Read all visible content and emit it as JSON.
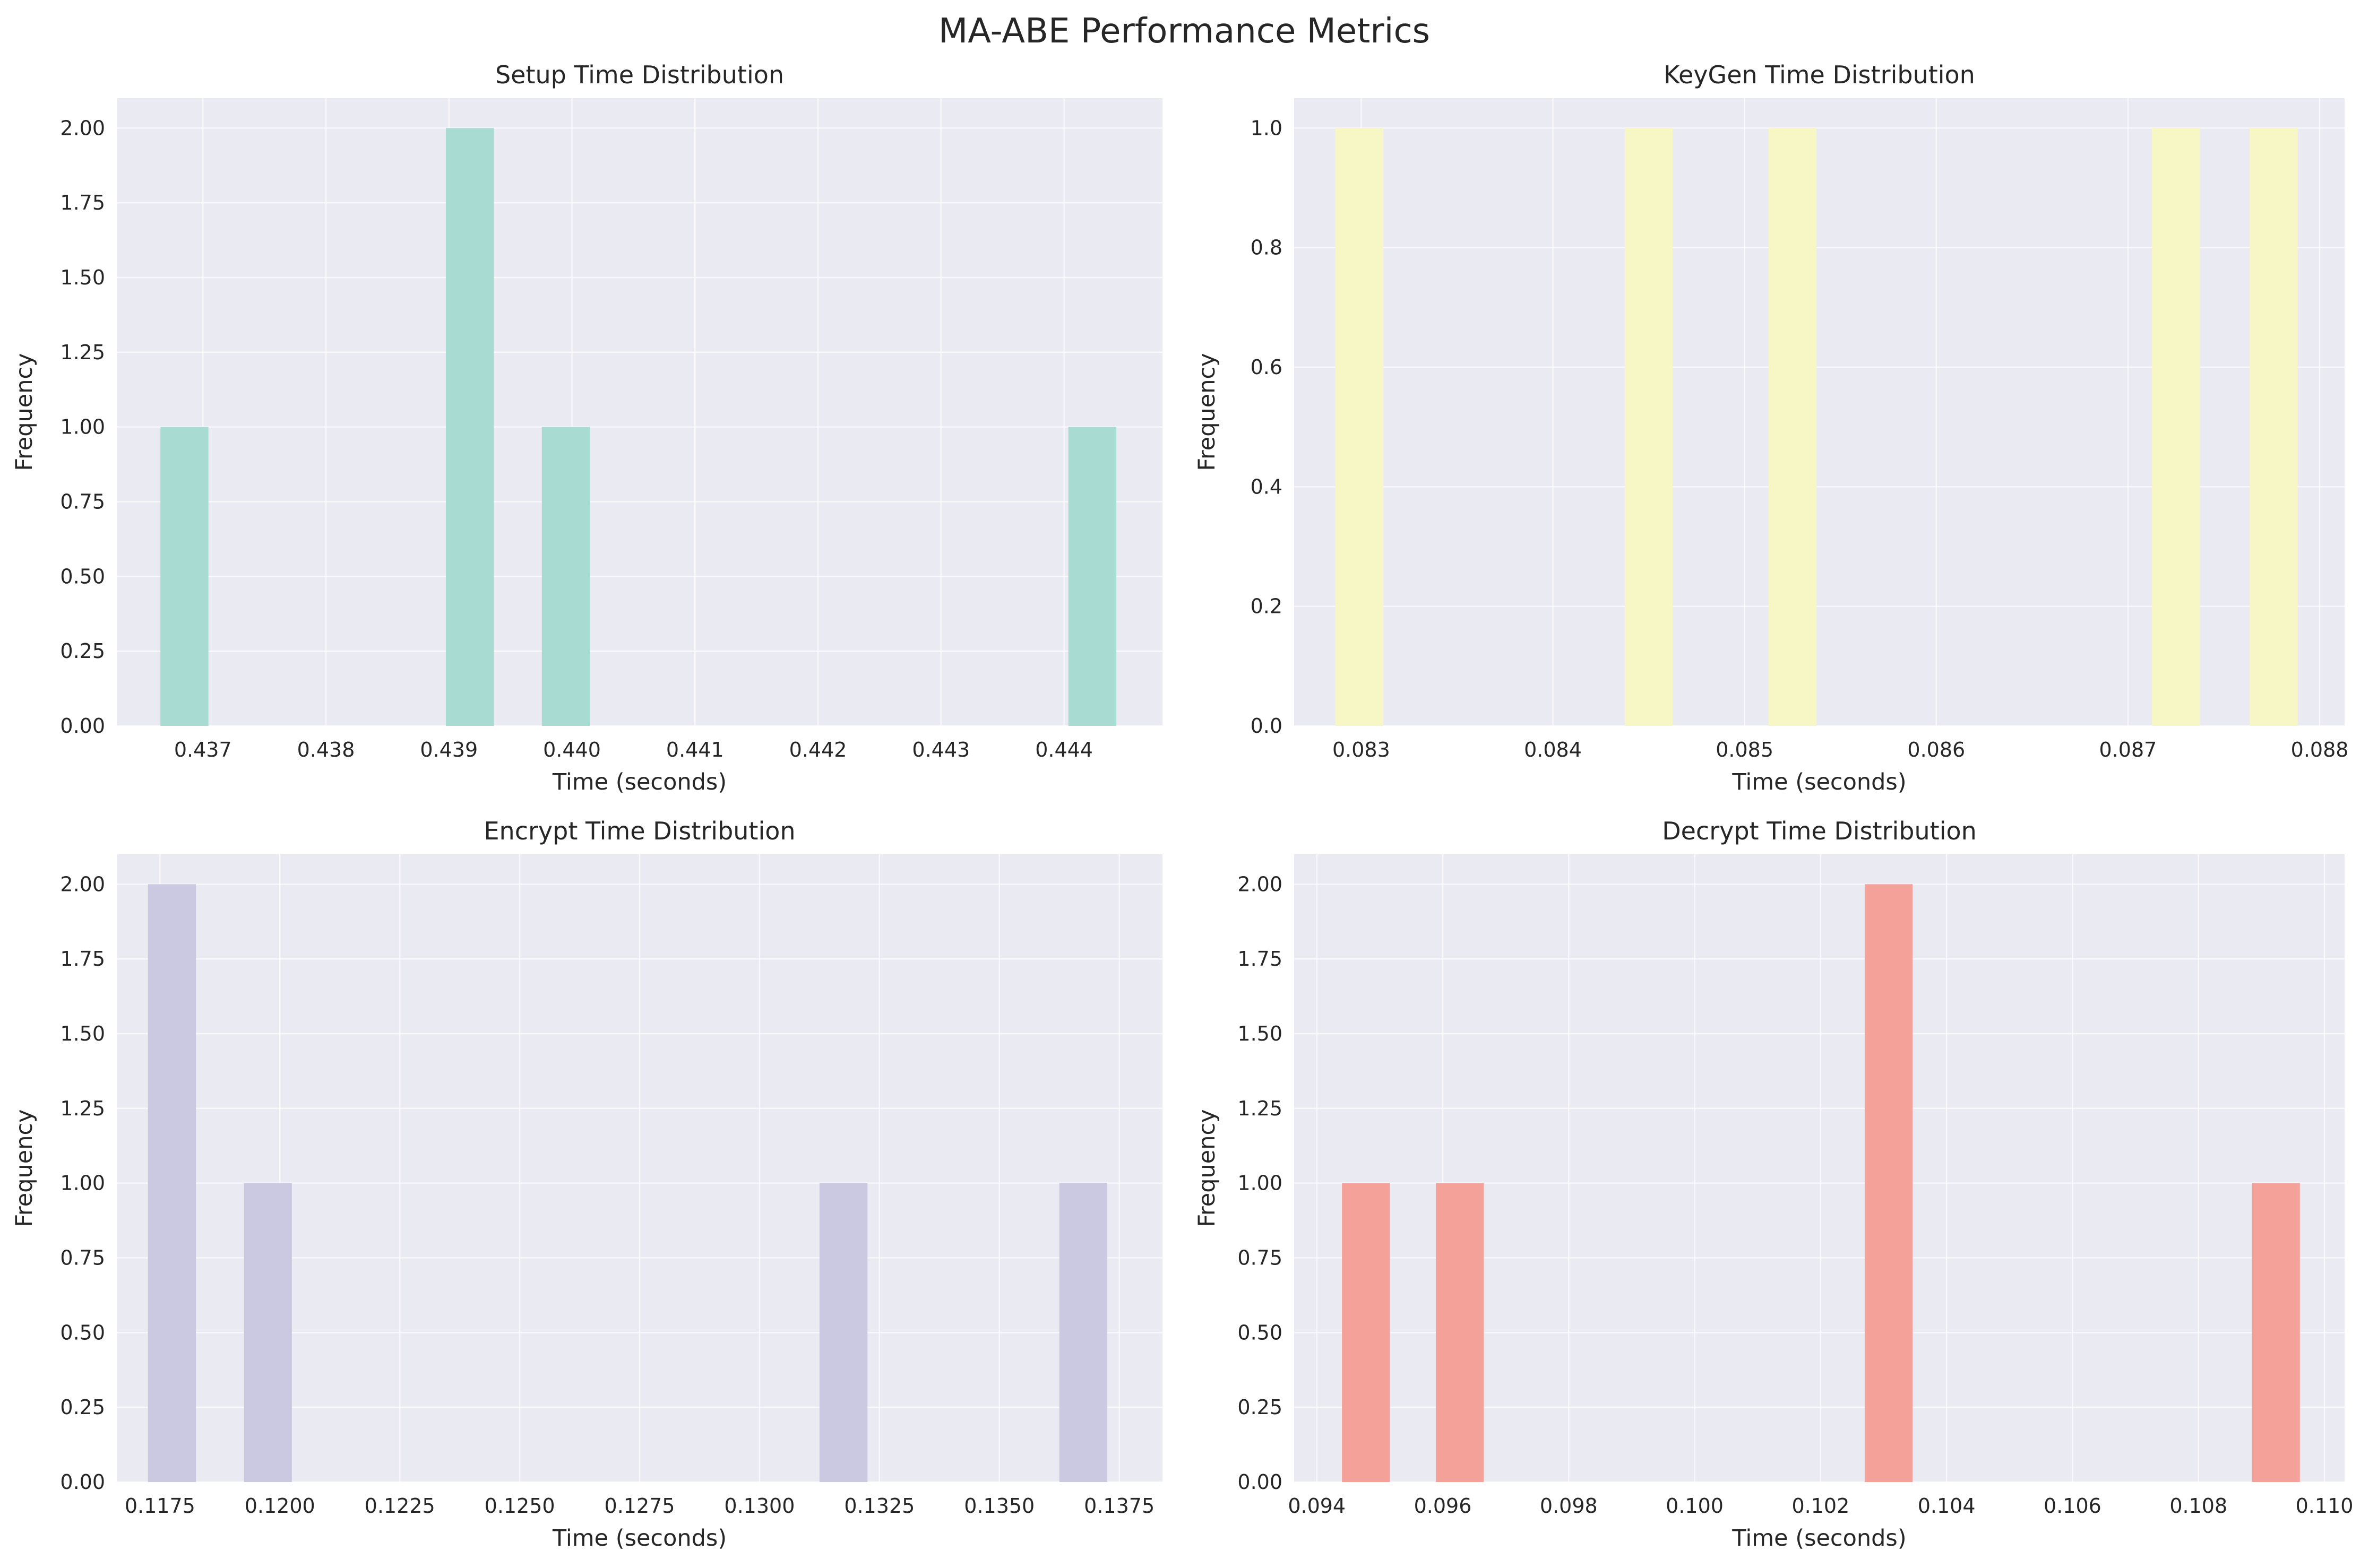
{
  "figure": {
    "title": "MA-ABE Performance Metrics"
  },
  "chart_data": [
    {
      "type": "bar",
      "title": "Setup Time Distribution",
      "xlabel": "Time (seconds)",
      "ylabel": "Frequency",
      "color": "#a8dcd2",
      "xlim": [
        0.4363,
        0.4448
      ],
      "ylim": [
        0,
        2.1
      ],
      "xticks": [
        0.437,
        0.438,
        0.439,
        0.44,
        0.441,
        0.442,
        0.443,
        0.444
      ],
      "xtick_labels": [
        "0.437",
        "0.438",
        "0.439",
        "0.440",
        "0.441",
        "0.442",
        "0.443",
        "0.444"
      ],
      "yticks": [
        0,
        0.25,
        0.5,
        0.75,
        1.0,
        1.25,
        1.5,
        1.75,
        2.0
      ],
      "ytick_labels": [
        "0.00",
        "0.25",
        "0.50",
        "0.75",
        "1.00",
        "1.25",
        "1.50",
        "1.75",
        "2.00"
      ],
      "bin_width": 0.00039,
      "bins": [
        {
          "x": 0.43685,
          "count": 1
        },
        {
          "x": 0.43917,
          "count": 2
        },
        {
          "x": 0.43995,
          "count": 1
        },
        {
          "x": 0.44423,
          "count": 1
        }
      ],
      "grid": true
    },
    {
      "type": "bar",
      "title": "KeyGen Time Distribution",
      "xlabel": "Time (seconds)",
      "ylabel": "Frequency",
      "color": "#f7f7c5",
      "xlim": [
        0.08265,
        0.08813
      ],
      "ylim": [
        0,
        1.05
      ],
      "xticks": [
        0.083,
        0.084,
        0.085,
        0.086,
        0.087,
        0.088
      ],
      "xtick_labels": [
        "0.083",
        "0.084",
        "0.085",
        "0.086",
        "0.087",
        "0.088"
      ],
      "yticks": [
        0,
        0.2,
        0.4,
        0.6,
        0.8,
        1.0
      ],
      "ytick_labels": [
        "0.0",
        "0.2",
        "0.4",
        "0.6",
        "0.8",
        "1.0"
      ],
      "bin_width": 0.00025,
      "bins": [
        {
          "x": 0.08299,
          "count": 1
        },
        {
          "x": 0.0845,
          "count": 1
        },
        {
          "x": 0.08525,
          "count": 1
        },
        {
          "x": 0.08725,
          "count": 1
        },
        {
          "x": 0.08776,
          "count": 1
        }
      ],
      "grid": true
    },
    {
      "type": "bar",
      "title": "Encrypt Time Distribution",
      "xlabel": "Time (seconds)",
      "ylabel": "Frequency",
      "color": "#cbc9e2",
      "xlim": [
        0.1166,
        0.1384
      ],
      "ylim": [
        0,
        2.1
      ],
      "xticks": [
        0.1175,
        0.12,
        0.1225,
        0.125,
        0.1275,
        0.13,
        0.1325,
        0.135,
        0.1375
      ],
      "xtick_labels": [
        "0.1175",
        "0.1200",
        "0.1225",
        "0.1250",
        "0.1275",
        "0.1300",
        "0.1325",
        "0.1350",
        "0.1375"
      ],
      "yticks": [
        0,
        0.25,
        0.5,
        0.75,
        1.0,
        1.25,
        1.5,
        1.75,
        2.0
      ],
      "ytick_labels": [
        "0.00",
        "0.25",
        "0.50",
        "0.75",
        "1.00",
        "1.25",
        "1.50",
        "1.75",
        "2.00"
      ],
      "bin_width": 0.001,
      "bins": [
        {
          "x": 0.11775,
          "count": 2
        },
        {
          "x": 0.11975,
          "count": 1
        },
        {
          "x": 0.13175,
          "count": 1
        },
        {
          "x": 0.13675,
          "count": 1
        }
      ],
      "grid": true
    },
    {
      "type": "bar",
      "title": "Decrypt Time Distribution",
      "xlabel": "Time (seconds)",
      "ylabel": "Frequency",
      "color": "#f4a19a",
      "xlim": [
        0.09364,
        0.11032
      ],
      "ylim": [
        0,
        2.1
      ],
      "xticks": [
        0.094,
        0.096,
        0.098,
        0.1,
        0.102,
        0.104,
        0.106,
        0.108,
        0.11
      ],
      "xtick_labels": [
        "0.094",
        "0.096",
        "0.098",
        "0.100",
        "0.102",
        "0.104",
        "0.106",
        "0.108",
        "0.110"
      ],
      "yticks": [
        0,
        0.25,
        0.5,
        0.75,
        1.0,
        1.25,
        1.5,
        1.75,
        2.0
      ],
      "ytick_labels": [
        "0.00",
        "0.25",
        "0.50",
        "0.75",
        "1.00",
        "1.25",
        "1.50",
        "1.75",
        "2.00"
      ],
      "bin_width": 0.00076,
      "bins": [
        {
          "x": 0.09478,
          "count": 1
        },
        {
          "x": 0.09627,
          "count": 1
        },
        {
          "x": 0.10308,
          "count": 2
        },
        {
          "x": 0.10923,
          "count": 1
        }
      ],
      "grid": true
    }
  ]
}
